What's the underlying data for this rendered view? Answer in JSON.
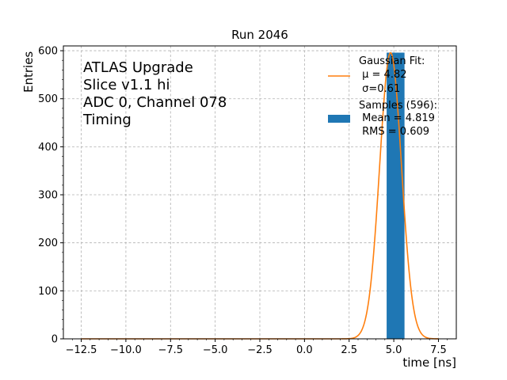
{
  "chart_data": {
    "type": "bar",
    "title": "Run 2046",
    "xlabel": "time [ns]",
    "ylabel": "Entries",
    "xlim": [
      -13.5,
      8.5
    ],
    "ylim": [
      0,
      610
    ],
    "xticks": [
      -12.5,
      -10.0,
      -7.5,
      -5.0,
      -2.5,
      0.0,
      2.5,
      5.0,
      7.5
    ],
    "xtick_labels": [
      "−12.5",
      "−10.0",
      "−7.5",
      "−5.0",
      "−2.5",
      "0.0",
      "2.5",
      "5.0",
      "7.5"
    ],
    "yticks": [
      0,
      100,
      200,
      300,
      400,
      500,
      600
    ],
    "ytick_labels": [
      "0",
      "100",
      "200",
      "300",
      "400",
      "500",
      "600"
    ],
    "grid": true,
    "legend_position": "top-right",
    "annotation_lines": [
      "ATLAS Upgrade",
      "Slice v1.1 hi",
      "ADC 0, Channel 078",
      "Timing"
    ],
    "histogram": {
      "name": "Samples (596):",
      "bins": [
        {
          "x0": 4.6,
          "x1": 5.6,
          "count": 596
        }
      ],
      "color": "#1f77b4",
      "legend_lines": [
        "Samples (596):",
        " Mean = 4.819",
        " RMS = 0.609"
      ]
    },
    "fit": {
      "name": "Gaussian Fit:",
      "type": "gaussian",
      "amplitude": 596,
      "mu": 4.82,
      "sigma": 0.61,
      "x_range": [
        -12.5,
        7.5
      ],
      "color": "#ff7f0e",
      "legend_lines": [
        "Gaussian Fit:",
        " μ = 4.82",
        " σ=0.61"
      ]
    }
  }
}
